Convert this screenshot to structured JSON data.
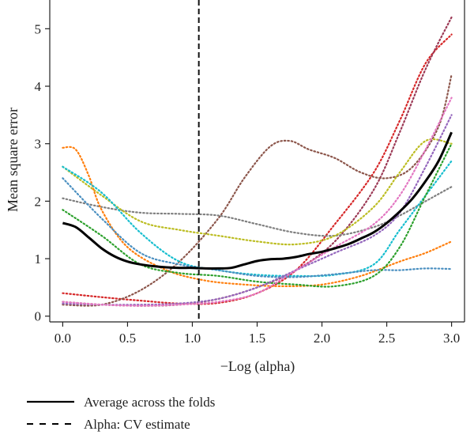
{
  "chart_data": {
    "type": "line",
    "title": "",
    "xlabel": "−Log (alpha)",
    "ylabel": "Mean square error",
    "xlim": [
      -0.1,
      3.1
    ],
    "ylim": [
      -0.1,
      5.5
    ],
    "xticks": [
      "0.0",
      "0.5",
      "1.0",
      "1.5",
      "2.0",
      "2.5",
      "3.0"
    ],
    "yticks": [
      "0",
      "1",
      "2",
      "3",
      "4",
      "5"
    ],
    "grid": false,
    "legend_position": "bottom-left",
    "cv_alpha": 1.05,
    "average": {
      "name": "Average across the folds",
      "color": "#000000",
      "x": [
        0.0,
        0.1,
        0.2,
        0.3,
        0.4,
        0.5,
        0.6,
        0.7,
        0.8,
        0.9,
        1.0,
        1.1,
        1.2,
        1.3,
        1.4,
        1.5,
        1.6,
        1.7,
        1.8,
        1.9,
        2.0,
        2.1,
        2.2,
        2.3,
        2.4,
        2.5,
        2.6,
        2.7,
        2.8,
        2.9,
        3.0
      ],
      "values": [
        1.62,
        1.55,
        1.37,
        1.18,
        1.04,
        0.95,
        0.9,
        0.87,
        0.85,
        0.84,
        0.84,
        0.83,
        0.83,
        0.84,
        0.9,
        0.96,
        0.99,
        1.0,
        1.03,
        1.08,
        1.12,
        1.18,
        1.25,
        1.35,
        1.46,
        1.62,
        1.82,
        2.05,
        2.35,
        2.7,
        3.2
      ]
    },
    "folds": [
      {
        "color": "#d62728",
        "x": [
          0.0,
          0.3,
          0.6,
          0.9,
          1.2,
          1.5,
          1.8,
          2.1,
          2.4,
          2.6,
          2.8,
          3.0
        ],
        "values": [
          0.4,
          0.33,
          0.27,
          0.22,
          0.23,
          0.4,
          0.8,
          1.6,
          2.5,
          3.4,
          4.4,
          4.9
        ]
      },
      {
        "color": "#9c3a56",
        "x": [
          0.0,
          0.3,
          0.6,
          0.9,
          1.2,
          1.5,
          1.8,
          2.1,
          2.4,
          2.6,
          2.8,
          3.0
        ],
        "values": [
          0.25,
          0.2,
          0.18,
          0.2,
          0.3,
          0.5,
          0.8,
          1.3,
          2.2,
          3.2,
          4.3,
          5.2
        ]
      },
      {
        "color": "#8c564b",
        "x": [
          0.0,
          0.3,
          0.6,
          0.9,
          1.2,
          1.4,
          1.6,
          1.75,
          1.9,
          2.1,
          2.3,
          2.5,
          2.7,
          2.9,
          3.0
        ],
        "values": [
          0.2,
          0.2,
          0.45,
          0.95,
          1.7,
          2.4,
          2.95,
          3.05,
          2.9,
          2.75,
          2.5,
          2.4,
          2.6,
          3.3,
          4.2
        ]
      },
      {
        "color": "#7f7f7f",
        "x": [
          0.0,
          0.3,
          0.6,
          0.9,
          1.2,
          1.5,
          1.8,
          2.1,
          2.4,
          2.6,
          2.8,
          3.0
        ],
        "values": [
          2.05,
          1.9,
          1.8,
          1.78,
          1.75,
          1.6,
          1.45,
          1.4,
          1.55,
          1.75,
          2.0,
          2.25
        ]
      },
      {
        "color": "#bcbd22",
        "x": [
          0.0,
          0.3,
          0.6,
          0.9,
          1.2,
          1.5,
          1.8,
          2.1,
          2.4,
          2.6,
          2.8,
          3.0
        ],
        "values": [
          2.6,
          2.1,
          1.65,
          1.5,
          1.4,
          1.3,
          1.25,
          1.4,
          1.9,
          2.5,
          3.05,
          3.0
        ]
      },
      {
        "color": "#ff7f0e",
        "x": [
          0.0,
          0.1,
          0.2,
          0.3,
          0.5,
          0.8,
          1.1,
          1.4,
          1.7,
          2.0,
          2.3,
          2.6,
          2.8,
          3.0
        ],
        "values": [
          2.93,
          2.9,
          2.45,
          1.85,
          1.2,
          0.8,
          0.62,
          0.55,
          0.52,
          0.55,
          0.7,
          0.95,
          1.1,
          1.3
        ]
      },
      {
        "color": "#17becf",
        "x": [
          0.0,
          0.3,
          0.6,
          0.9,
          1.2,
          1.5,
          1.8,
          2.1,
          2.4,
          2.6,
          2.8,
          3.0
        ],
        "values": [
          2.6,
          2.15,
          1.45,
          0.95,
          0.8,
          0.72,
          0.7,
          0.72,
          0.9,
          1.5,
          2.1,
          2.7
        ]
      },
      {
        "color": "#4a8fc0",
        "x": [
          0.0,
          0.3,
          0.6,
          0.9,
          1.2,
          1.5,
          1.8,
          2.1,
          2.4,
          2.6,
          2.8,
          3.0
        ],
        "values": [
          2.4,
          1.7,
          1.1,
          0.9,
          0.8,
          0.7,
          0.68,
          0.73,
          0.8,
          0.8,
          0.83,
          0.82
        ]
      },
      {
        "color": "#2ca02c",
        "x": [
          0.0,
          0.3,
          0.6,
          0.9,
          1.2,
          1.5,
          1.8,
          2.1,
          2.4,
          2.6,
          2.8,
          3.0
        ],
        "values": [
          1.85,
          1.4,
          0.9,
          0.75,
          0.7,
          0.6,
          0.55,
          0.52,
          0.7,
          1.2,
          2.1,
          3.0
        ]
      },
      {
        "color": "#9467bd",
        "x": [
          0.0,
          0.3,
          0.6,
          0.9,
          1.2,
          1.5,
          1.8,
          2.1,
          2.4,
          2.6,
          2.8,
          3.0
        ],
        "values": [
          0.22,
          0.2,
          0.2,
          0.22,
          0.3,
          0.5,
          0.8,
          1.1,
          1.4,
          1.8,
          2.6,
          3.5
        ]
      },
      {
        "color": "#e377c2",
        "x": [
          0.0,
          0.3,
          0.6,
          0.9,
          1.2,
          1.5,
          1.8,
          2.1,
          2.4,
          2.6,
          2.8,
          3.0
        ],
        "values": [
          0.25,
          0.2,
          0.18,
          0.2,
          0.25,
          0.4,
          0.8,
          1.2,
          1.6,
          2.1,
          2.9,
          3.8
        ]
      }
    ],
    "legend": [
      {
        "label": "Average across the folds",
        "style": "solid"
      },
      {
        "label": "Alpha: CV estimate",
        "style": "dashed"
      }
    ]
  }
}
